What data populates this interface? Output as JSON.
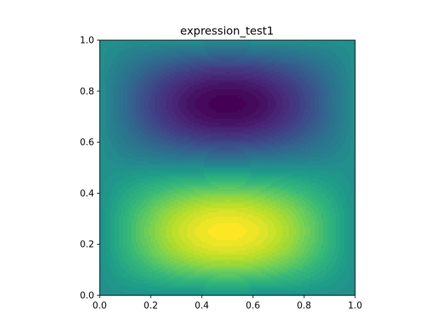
{
  "chart_data": {
    "type": "heatmap",
    "title": "expression_test1",
    "xlabel": "",
    "ylabel": "",
    "xlim": [
      0.0,
      1.0
    ],
    "ylim": [
      0.0,
      1.0
    ],
    "x_ticks": [
      "0.0",
      "0.2",
      "0.4",
      "0.6",
      "0.8",
      "1.0"
    ],
    "y_ticks": [
      "0.0",
      "0.2",
      "0.4",
      "0.6",
      "0.8",
      "1.0"
    ],
    "grid": false,
    "colormap": "viridis",
    "colormap_stops": [
      "#440154",
      "#482878",
      "#3e4989",
      "#31688e",
      "#26828e",
      "#1f9e89",
      "#35b779",
      "#6ece58",
      "#b5de2b",
      "#fde725"
    ],
    "value_range": [
      -1.0,
      1.0
    ],
    "field": {
      "description_formula": "sin(2*pi*x/2)*sin(2*pi*y)",
      "expression": "sin(pi*x)*sin(2*pi*y)",
      "maximum": {
        "x": 0.5,
        "y": 0.25,
        "value": 1.0
      },
      "minimum": {
        "x": 0.5,
        "y": 0.75,
        "value": -1.0
      }
    },
    "contour_levels": 40
  }
}
